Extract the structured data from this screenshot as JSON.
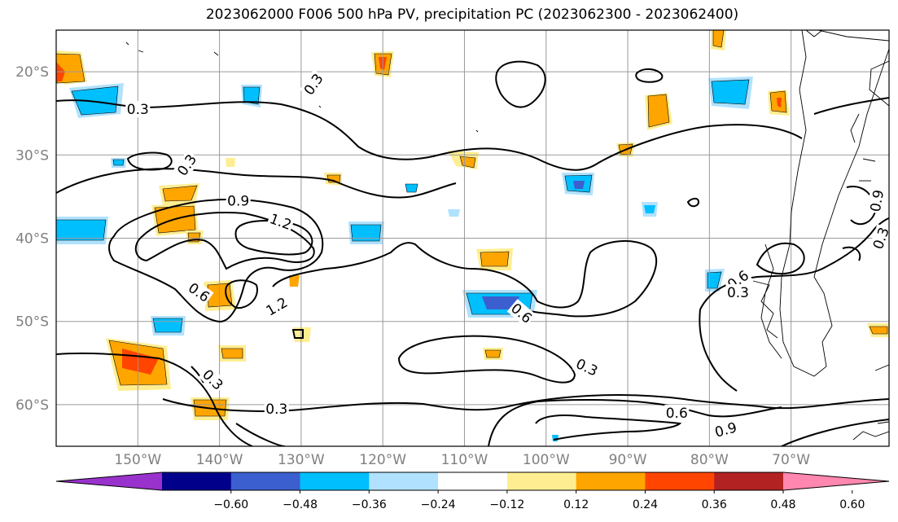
{
  "title": "2023062000 F006 500 hPa PV, precipitation PC (2023062300 - 2023062400)",
  "map": {
    "lon_min": -160,
    "lon_max": -58,
    "lat_min": -65,
    "lat_max": -15,
    "lon_ticks": [
      {
        "value": -150,
        "label": "150°W"
      },
      {
        "value": -140,
        "label": "140°W"
      },
      {
        "value": -130,
        "label": "130°W"
      },
      {
        "value": -120,
        "label": "120°W"
      },
      {
        "value": -110,
        "label": "110°W"
      },
      {
        "value": -100,
        "label": "100°W"
      },
      {
        "value": -90,
        "label": "90°W"
      },
      {
        "value": -80,
        "label": "80°W"
      },
      {
        "value": -70,
        "label": "70°W"
      }
    ],
    "lat_ticks": [
      {
        "value": -20,
        "label": "20°S"
      },
      {
        "value": -30,
        "label": "30°S"
      },
      {
        "value": -40,
        "label": "40°S"
      },
      {
        "value": -50,
        "label": "50°S"
      },
      {
        "value": -60,
        "label": "60°S"
      }
    ],
    "tick_label_color": "#808080",
    "grid": true,
    "contour_labels": [
      {
        "text": "0.3",
        "lon": -150.0,
        "lat": -24.5,
        "rot": 0
      },
      {
        "text": "0.3",
        "lon": -144.0,
        "lat": -31.2,
        "rot": -55
      },
      {
        "text": "0.9",
        "lon": -137.7,
        "lat": -35.5,
        "rot": 0
      },
      {
        "text": "1.2",
        "lon": -132.5,
        "lat": -38.0,
        "rot": 20
      },
      {
        "text": "0.6",
        "lon": -142.5,
        "lat": -46.5,
        "rot": 35
      },
      {
        "text": "1.2",
        "lon": -133.0,
        "lat": -48.2,
        "rot": -30
      },
      {
        "text": "0.3",
        "lon": -128.5,
        "lat": -21.5,
        "rot": -55
      },
      {
        "text": "0.3",
        "lon": -140.8,
        "lat": -57.0,
        "rot": 45
      },
      {
        "text": "0.3",
        "lon": -133.0,
        "lat": -60.5,
        "rot": 0
      },
      {
        "text": "0.6",
        "lon": -103.0,
        "lat": -49.0,
        "rot": 40
      },
      {
        "text": "0.3",
        "lon": -95.0,
        "lat": -55.5,
        "rot": 25
      },
      {
        "text": "0.6",
        "lon": -84.0,
        "lat": -61.0,
        "rot": 0
      },
      {
        "text": "0.9",
        "lon": -78.0,
        "lat": -63.0,
        "rot": -15
      },
      {
        "text": "0.6",
        "lon": -76.5,
        "lat": -45.0,
        "rot": -35
      },
      {
        "text": "0.3",
        "lon": -76.5,
        "lat": -46.5,
        "rot": 0
      },
      {
        "text": "0.9",
        "lon": -59.5,
        "lat": -35.5,
        "rot": -80
      },
      {
        "text": "0.3",
        "lon": -59.0,
        "lat": -40.0,
        "rot": -70
      }
    ]
  },
  "colorbar": {
    "colors": [
      "#9932cc",
      "#00008b",
      "#3c5fcf",
      "#00bfff",
      "#b0e2ff",
      "#ffffff",
      "#ffee91",
      "#ffa500",
      "#ff4500",
      "#b22222",
      "#ff87b0"
    ],
    "labels": [
      "−0.60",
      "−0.48",
      "−0.36",
      "−0.24",
      "−0.12",
      "0.12",
      "0.24",
      "0.36",
      "0.48",
      "0.60"
    ],
    "extend": "both"
  }
}
